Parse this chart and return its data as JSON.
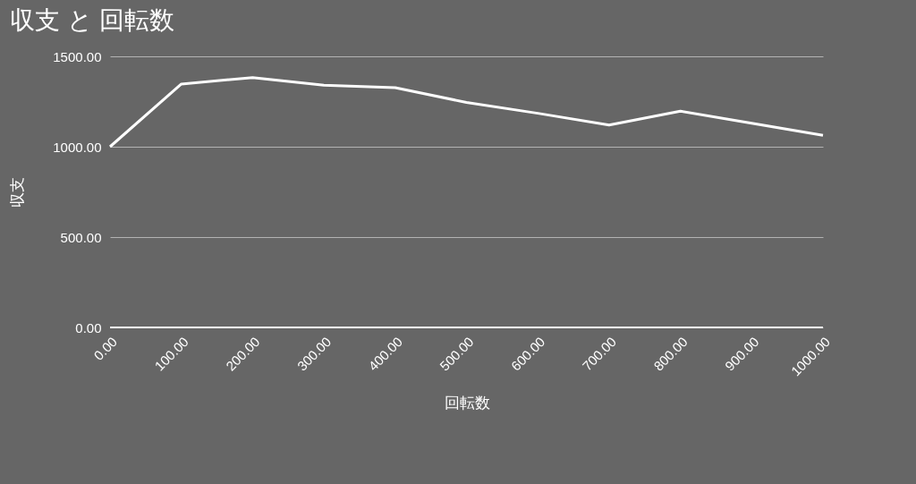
{
  "chart_data": {
    "type": "line",
    "title": "収支 と 回転数",
    "xlabel": "回転数",
    "ylabel": "収支",
    "x": [
      0,
      100,
      200,
      300,
      400,
      500,
      600,
      700,
      800,
      900,
      1000
    ],
    "series": [
      {
        "color": "#ffffff",
        "values": [
          1000,
          1347,
          1383,
          1340,
          1327,
          1245,
          1185,
          1120,
          1197,
          1130,
          1063
        ]
      }
    ],
    "xlim": [
      0,
      1000
    ],
    "xticks": [
      {
        "value": 0,
        "label": "0.00"
      },
      {
        "value": 100,
        "label": "100.00"
      },
      {
        "value": 200,
        "label": "200.00"
      },
      {
        "value": 300,
        "label": "300.00"
      },
      {
        "value": 400,
        "label": "400.00"
      },
      {
        "value": 500,
        "label": "500.00"
      },
      {
        "value": 600,
        "label": "600.00"
      },
      {
        "value": 700,
        "label": "700.00"
      },
      {
        "value": 800,
        "label": "800.00"
      },
      {
        "value": 900,
        "label": "900.00"
      },
      {
        "value": 1000,
        "label": "1000.00"
      }
    ],
    "ylim": [
      0,
      1500
    ],
    "yticks": [
      {
        "value": 0,
        "label": "0.00"
      },
      {
        "value": 500,
        "label": "500.00"
      },
      {
        "value": 1000,
        "label": "1000.00"
      },
      {
        "value": 1500,
        "label": "1500.00"
      }
    ],
    "grid": "y",
    "legend": false,
    "marker": "none",
    "line_style": "solid"
  }
}
